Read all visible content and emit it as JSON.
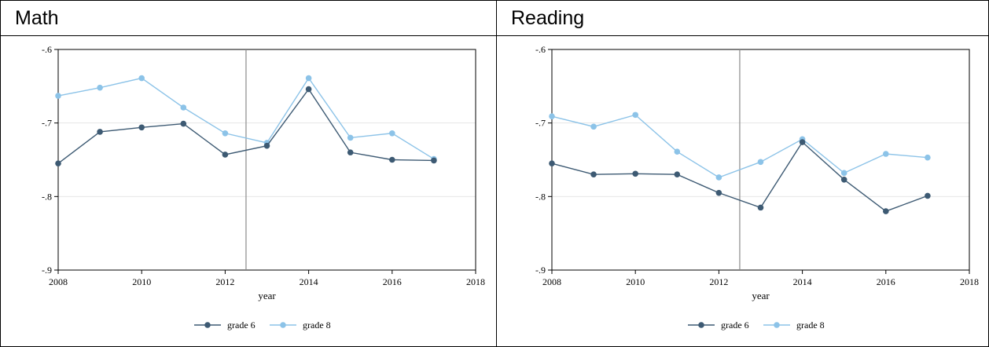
{
  "panels": [
    {
      "title": "Math"
    },
    {
      "title": "Reading"
    }
  ],
  "colors": {
    "grade6": "#3d5a73",
    "grade8": "#8cc3e8",
    "grid": "#e6e6e6",
    "vline": "#8a8a8a"
  },
  "chart_data": [
    {
      "type": "line",
      "title": "Math",
      "xlabel": "year",
      "ylabel": "",
      "xlim": [
        2008,
        2018
      ],
      "ylim": [
        -0.9,
        -0.6
      ],
      "xticks": [
        "2008",
        "2010",
        "2012",
        "2014",
        "2016",
        "2018"
      ],
      "yticks": [
        "-.6",
        "-.7",
        "-.8",
        "-.9"
      ],
      "grid": true,
      "vline": 2012.5,
      "legend_position": "bottom",
      "x": [
        2008,
        2009,
        2010,
        2011,
        2012,
        2013,
        2014,
        2015,
        2016,
        2017
      ],
      "series": [
        {
          "name": "grade 6",
          "values": [
            -0.755,
            -0.712,
            -0.706,
            -0.701,
            -0.743,
            -0.731,
            -0.654,
            -0.74,
            -0.75,
            -0.751
          ]
        },
        {
          "name": "grade 8",
          "values": [
            -0.663,
            -0.652,
            -0.639,
            -0.679,
            -0.714,
            -0.727,
            -0.639,
            -0.72,
            -0.714,
            -0.749
          ]
        }
      ]
    },
    {
      "type": "line",
      "title": "Reading",
      "xlabel": "year",
      "ylabel": "",
      "xlim": [
        2008,
        2018
      ],
      "ylim": [
        -0.9,
        -0.6
      ],
      "xticks": [
        "2008",
        "2010",
        "2012",
        "2014",
        "2016",
        "2018"
      ],
      "yticks": [
        "-.6",
        "-.7",
        "-.8",
        "-.9"
      ],
      "grid": true,
      "vline": 2012.5,
      "legend_position": "bottom",
      "x": [
        2008,
        2009,
        2010,
        2011,
        2012,
        2013,
        2014,
        2015,
        2016,
        2017
      ],
      "series": [
        {
          "name": "grade 6",
          "values": [
            -0.755,
            -0.77,
            -0.769,
            -0.77,
            -0.795,
            -0.815,
            -0.726,
            -0.777,
            -0.82,
            -0.799
          ]
        },
        {
          "name": "grade 8",
          "values": [
            -0.691,
            -0.705,
            -0.689,
            -0.739,
            -0.774,
            -0.753,
            -0.722,
            -0.768,
            -0.742,
            -0.747
          ]
        }
      ]
    }
  ]
}
